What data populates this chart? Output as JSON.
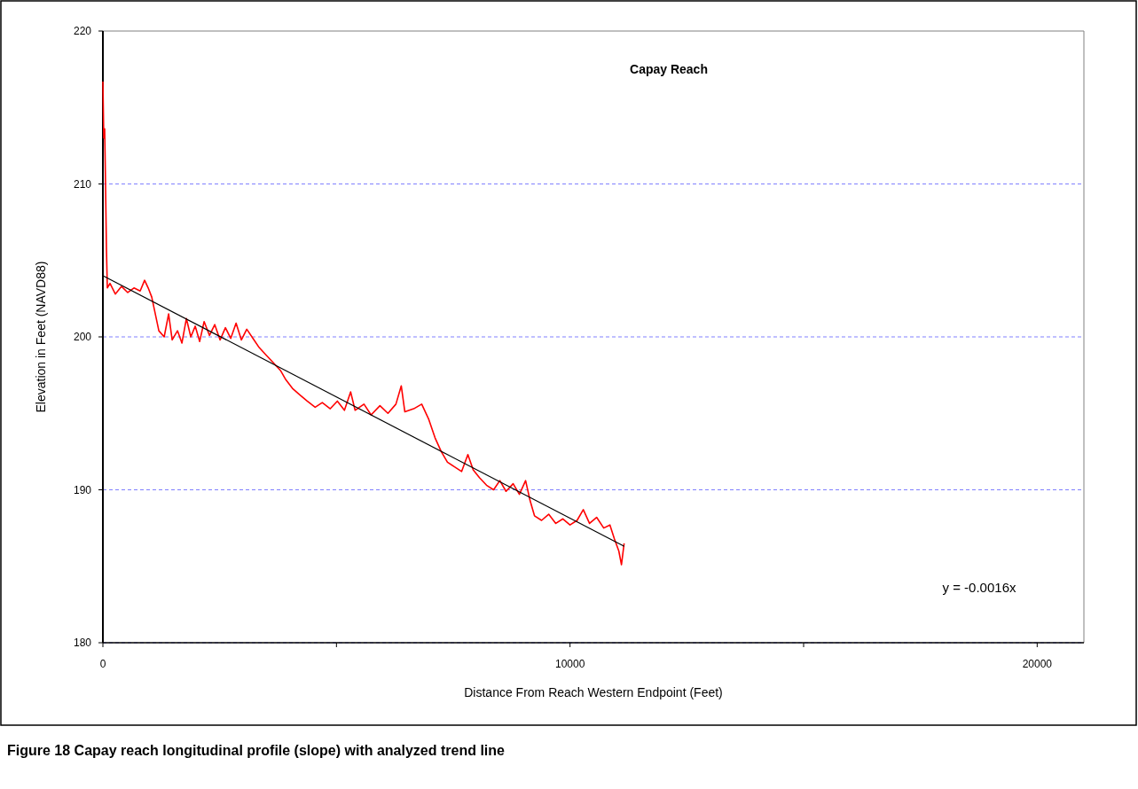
{
  "chart_data": {
    "type": "line",
    "title": "Capay Reach",
    "xlabel": "Distance From Reach Western Endpoint (Feet)",
    "ylabel": "Elevation in Feet (NAVD88)",
    "annotations": [
      "y = -0.0016x",
      "Figure 18 Capay reach longitudinal profile (slope) with analyzed trend line"
    ],
    "xlim": [
      0,
      21000
    ],
    "xticks": [
      0,
      {
        "value": 5000,
        "label": null
      },
      10000,
      {
        "value": 15000,
        "label": null
      },
      20000
    ],
    "ylim": [
      180,
      220
    ],
    "yticks": [
      180,
      190,
      200,
      210,
      220
    ],
    "grid": "y",
    "marker": "none",
    "series": [
      {
        "color": "#ff0000",
        "x": [
          0,
          19,
          38,
          57,
          76,
          95,
          152,
          266,
          399,
          532,
          665,
          798,
          893,
          970,
          1046,
          1122,
          1198,
          1312,
          1407,
          1483,
          1597,
          1692,
          1787,
          1882,
          1977,
          2072,
          2167,
          2281,
          2395,
          2509,
          2623,
          2737,
          2851,
          2965,
          3080,
          3213,
          3346,
          3498,
          3650,
          3802,
          3916,
          4068,
          4220,
          4373,
          4544,
          4696,
          4867,
          5019,
          5171,
          5304,
          5399,
          5589,
          5741,
          5931,
          6102,
          6273,
          6387,
          6464,
          6654,
          6825,
          6977,
          7110,
          7243,
          7376,
          7528,
          7680,
          7813,
          7927,
          8060,
          8212,
          8364,
          8497,
          8630,
          8782,
          8916,
          9049,
          9144,
          9239,
          9391,
          9543,
          9695,
          9847,
          9999,
          10151,
          10284,
          10417,
          10569,
          10721,
          10854,
          10949,
          11044,
          11101,
          11158
        ],
        "values": [
          216.7,
          213.0,
          213.6,
          209.9,
          205.8,
          203.2,
          203.5,
          202.8,
          203.3,
          202.9,
          203.2,
          203.0,
          203.7,
          203.2,
          202.6,
          201.5,
          200.4,
          200.0,
          201.5,
          199.8,
          200.4,
          199.6,
          201.2,
          200.0,
          200.7,
          199.7,
          201.0,
          200.1,
          200.8,
          199.8,
          200.6,
          199.9,
          200.9,
          199.8,
          200.5,
          199.9,
          199.3,
          198.8,
          198.3,
          197.8,
          197.2,
          196.6,
          196.2,
          195.8,
          195.4,
          195.7,
          195.3,
          195.8,
          195.2,
          196.4,
          195.2,
          195.6,
          194.9,
          195.5,
          195.0,
          195.6,
          196.8,
          195.1,
          195.3,
          195.6,
          194.6,
          193.4,
          192.5,
          191.8,
          191.5,
          191.2,
          192.3,
          191.3,
          190.8,
          190.3,
          190.0,
          190.6,
          189.9,
          190.4,
          189.7,
          190.6,
          189.3,
          188.3,
          188.0,
          188.4,
          187.8,
          188.1,
          187.7,
          188.0,
          188.7,
          187.8,
          188.2,
          187.5,
          187.7,
          186.8,
          186.0,
          185.1,
          186.5
        ]
      },
      {
        "type": "line",
        "color": "#000000",
        "x": [
          0,
          11160
        ],
        "values": [
          204.0,
          186.3
        ]
      }
    ]
  }
}
